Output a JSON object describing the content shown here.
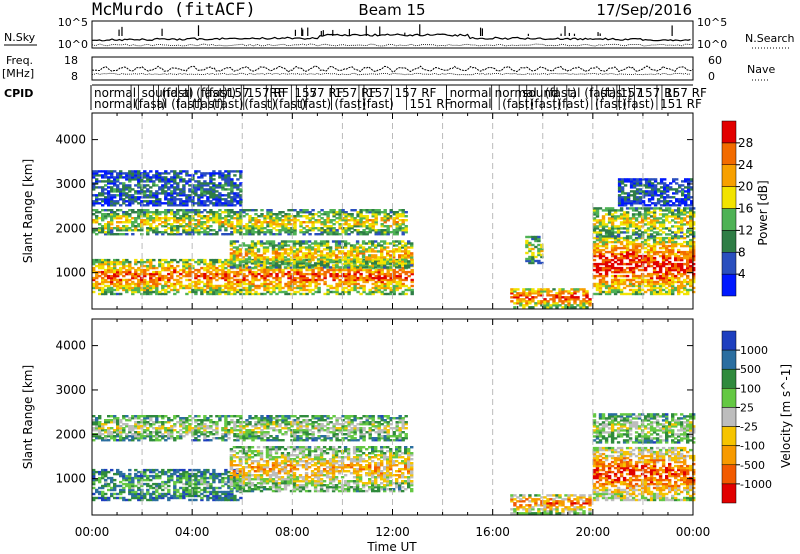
{
  "header": {
    "station": "McMurdo (fitACF)",
    "beam": "Beam 15",
    "date": "17/Sep/2016"
  },
  "strips": {
    "nsky": {
      "label": "N.Sky",
      "right_label": "N.Search",
      "ticks_left": [
        "10^5",
        "10^0"
      ],
      "ticks_right": [
        "10^5",
        "10^0"
      ]
    },
    "freq": {
      "label_line1": "Freq.",
      "label_line2": "[MHz]",
      "ticks_left": [
        "18",
        "8"
      ],
      "right_label": "Nave",
      "ticks_right": [
        "60",
        "0"
      ]
    },
    "cpid": {
      "label": "CPID",
      "row1": [
        {
          "x": 0.0,
          "text": "normal"
        },
        {
          "x": 1.9,
          "text": "sound"
        },
        {
          "x": 2.7,
          "text": "(fast)"
        },
        {
          "x": 3.5,
          "text": "al (fast)"
        },
        {
          "x": 4.4,
          "text": "(fast)"
        },
        {
          "x": 5.3,
          "text": "157"
        },
        {
          "x": 6.1,
          "text": "157 RF"
        },
        {
          "x": 7.0,
          "text": "RF"
        },
        {
          "x": 8.0,
          "text": "157"
        },
        {
          "x": 8.6,
          "text": "57 RF"
        },
        {
          "x": 9.6,
          "text": "157 RF"
        },
        {
          "x": 10.9,
          "text": "157"
        },
        {
          "x": 12.0,
          "text": "157 RF"
        },
        {
          "x": 14.2,
          "text": "normal"
        },
        {
          "x": 16.0,
          "text": "normal"
        },
        {
          "x": 17.1,
          "text": "sound"
        },
        {
          "x": 18.0,
          "text": "(fast)"
        },
        {
          "x": 19.0,
          "text": "al (fast)"
        },
        {
          "x": 20.2,
          "text": "(fast)"
        },
        {
          "x": 21.0,
          "text": "157"
        },
        {
          "x": 21.7,
          "text": "157 RF"
        },
        {
          "x": 22.8,
          "text": "157 RF"
        }
      ],
      "row2": [
        {
          "x": 0.0,
          "text": "normal"
        },
        {
          "x": 1.6,
          "text": "(fast)"
        },
        {
          "x": 2.5,
          "text": "al (fast)"
        },
        {
          "x": 3.9,
          "text": "(fast)"
        },
        {
          "x": 4.7,
          "text": "(fast)"
        },
        {
          "x": 6.0,
          "text": "(fast)"
        },
        {
          "x": 7.2,
          "text": "(fast)"
        },
        {
          "x": 8.2,
          "text": "(fast)"
        },
        {
          "x": 9.6,
          "text": "(fast)"
        },
        {
          "x": 10.7,
          "text": "(fast)"
        },
        {
          "x": 12.6,
          "text": "151 RF"
        },
        {
          "x": 14.2,
          "text": "normal"
        },
        {
          "x": 16.3,
          "text": "(fast)"
        },
        {
          "x": 17.4,
          "text": "(fast)"
        },
        {
          "x": 18.5,
          "text": "(fast)"
        },
        {
          "x": 20.0,
          "text": "(fast)"
        },
        {
          "x": 21.1,
          "text": "(fast)"
        },
        {
          "x": 22.6,
          "text": "151 RF"
        }
      ]
    }
  },
  "axes": {
    "ylabel": "Slant Range [km]",
    "xlabel": "Time UT",
    "yticks": [
      "1000",
      "2000",
      "3000",
      "4000"
    ],
    "xticks": [
      "00:00",
      "04:00",
      "08:00",
      "12:00",
      "16:00",
      "20:00",
      "00:00"
    ]
  },
  "colorbars": {
    "power": {
      "label": "Power [dB]",
      "ticks": [
        "4",
        "8",
        "12",
        "16",
        "20",
        "24",
        "28"
      ],
      "colors": [
        "#0018ff",
        "#2a4fbe",
        "#2f7d46",
        "#4eb255",
        "#f2e300",
        "#f7a000",
        "#f26b00",
        "#e20000"
      ]
    },
    "velocity": {
      "label": "Velocity [m s^-1]",
      "ticks": [
        "1000",
        "500",
        "100",
        "25",
        "-25",
        "-100",
        "-500",
        "-1000"
      ],
      "colors": [
        "#1e3fbf",
        "#2b6ea0",
        "#2f8a3c",
        "#64c843",
        "#bdbdbd",
        "#f6c400",
        "#f79a00",
        "#f25a00",
        "#e10000"
      ]
    }
  },
  "chart_data": [
    {
      "type": "heatmap",
      "title": "Power [dB]",
      "xlabel": "Time UT",
      "ylabel": "Slant Range [km]",
      "xlim": [
        0,
        24
      ],
      "ylim": [
        180,
        4600
      ],
      "bands": [
        {
          "t0": 0.0,
          "t1": 12.8,
          "r0": 500,
          "r1": 1300,
          "level": 0.75
        },
        {
          "t0": 5.5,
          "t1": 12.8,
          "r0": 1100,
          "r1": 1700,
          "level": 0.6
        },
        {
          "t0": 0.0,
          "t1": 12.5,
          "r0": 1850,
          "r1": 2400,
          "level": 0.55
        },
        {
          "t0": 0.0,
          "t1": 6.0,
          "r0": 2500,
          "r1": 3300,
          "level": 0.25
        },
        {
          "t0": 16.7,
          "t1": 19.9,
          "r0": 200,
          "r1": 650,
          "level": 0.8
        },
        {
          "t0": 17.3,
          "t1": 18.0,
          "r0": 1200,
          "r1": 1800,
          "level": 0.5
        },
        {
          "t0": 20.0,
          "t1": 24.0,
          "r0": 500,
          "r1": 1800,
          "level": 0.85
        },
        {
          "t0": 20.0,
          "t1": 24.0,
          "r0": 1800,
          "r1": 2450,
          "level": 0.55
        },
        {
          "t0": 21.0,
          "t1": 24.0,
          "r0": 2500,
          "r1": 3100,
          "level": 0.2
        }
      ]
    },
    {
      "type": "heatmap",
      "title": "Velocity [m s^-1]",
      "xlabel": "Time UT",
      "ylabel": "Slant Range [km]",
      "xlim": [
        0,
        24
      ],
      "ylim": [
        180,
        4600
      ],
      "bands": [
        {
          "t0": 0.0,
          "t1": 6.0,
          "r0": 500,
          "r1": 1200,
          "level": 0.3
        },
        {
          "t0": 5.5,
          "t1": 12.8,
          "r0": 700,
          "r1": 1700,
          "level": 0.6
        },
        {
          "t0": 0.0,
          "t1": 12.5,
          "r0": 1850,
          "r1": 2400,
          "level": 0.45
        },
        {
          "t0": 16.7,
          "t1": 19.9,
          "r0": 200,
          "r1": 650,
          "level": 0.7
        },
        {
          "t0": 20.0,
          "t1": 24.0,
          "r0": 500,
          "r1": 1700,
          "level": 0.78
        },
        {
          "t0": 20.0,
          "t1": 24.0,
          "r0": 1800,
          "r1": 2450,
          "level": 0.45
        }
      ]
    }
  ]
}
